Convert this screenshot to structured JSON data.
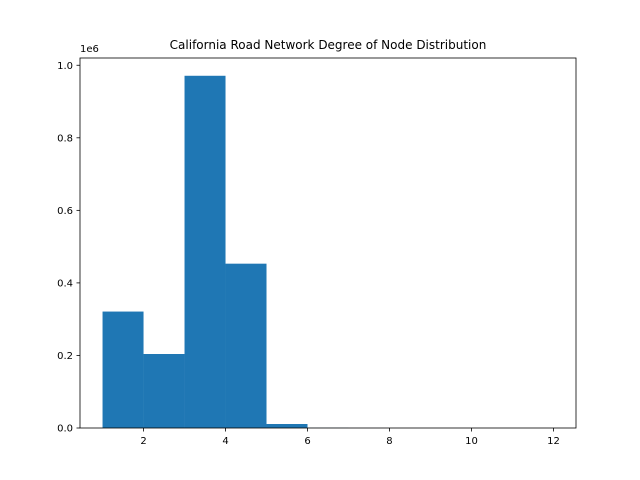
{
  "chart_data": {
    "type": "bar",
    "title": "California Road Network Degree of Node Distribution",
    "xlabel": "",
    "ylabel": "",
    "y_scale_label": "1e6",
    "bin_edges": [
      1,
      2,
      3,
      4,
      5,
      6,
      7,
      8,
      9,
      10,
      11,
      12
    ],
    "values": [
      321000,
      204000,
      971000,
      453000,
      11000,
      400,
      50,
      10,
      5,
      2,
      1
    ],
    "xlim": [
      0.45,
      12.55
    ],
    "ylim": [
      0,
      1020000
    ],
    "x_ticks": [
      2,
      4,
      6,
      8,
      10,
      12
    ],
    "x_tick_labels": [
      "2",
      "4",
      "6",
      "8",
      "10",
      "12"
    ],
    "y_ticks": [
      0,
      200000,
      400000,
      600000,
      800000,
      1000000
    ],
    "y_tick_labels": [
      "0.0",
      "0.2",
      "0.4",
      "0.6",
      "0.8",
      "1.0"
    ],
    "bar_color": "#1f77b4",
    "grid": false,
    "legend": "none"
  }
}
